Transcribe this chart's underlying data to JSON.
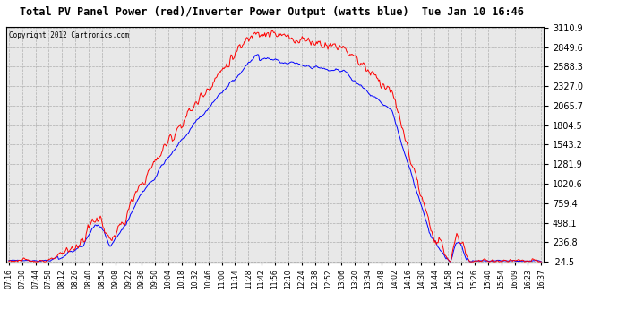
{
  "title": "Total PV Panel Power (red)/Inverter Power Output (watts blue)  Tue Jan 10 16:46",
  "copyright": "Copyright 2012 Cartronics.com",
  "ymin": -24.5,
  "ymax": 3110.9,
  "yticks": [
    3110.9,
    2849.6,
    2588.3,
    2327.0,
    2065.7,
    1804.5,
    1543.2,
    1281.9,
    1020.6,
    759.4,
    498.1,
    236.8,
    -24.5
  ],
  "bg_color": "#ffffff",
  "plot_bg_color": "#f0f0f0",
  "grid_color": "#aaaaaa",
  "red_color": "#ff0000",
  "blue_color": "#0000ff",
  "xtick_labels": [
    "07:16",
    "07:30",
    "07:44",
    "07:58",
    "08:12",
    "08:26",
    "08:40",
    "08:54",
    "09:08",
    "09:22",
    "09:36",
    "09:50",
    "10:04",
    "10:18",
    "10:32",
    "10:46",
    "11:00",
    "11:14",
    "11:28",
    "11:42",
    "11:56",
    "12:10",
    "12:24",
    "12:38",
    "12:52",
    "13:06",
    "13:20",
    "13:34",
    "13:48",
    "14:02",
    "14:16",
    "14:30",
    "14:44",
    "14:58",
    "15:12",
    "15:26",
    "15:40",
    "15:54",
    "16:09",
    "16:23",
    "16:37"
  ]
}
